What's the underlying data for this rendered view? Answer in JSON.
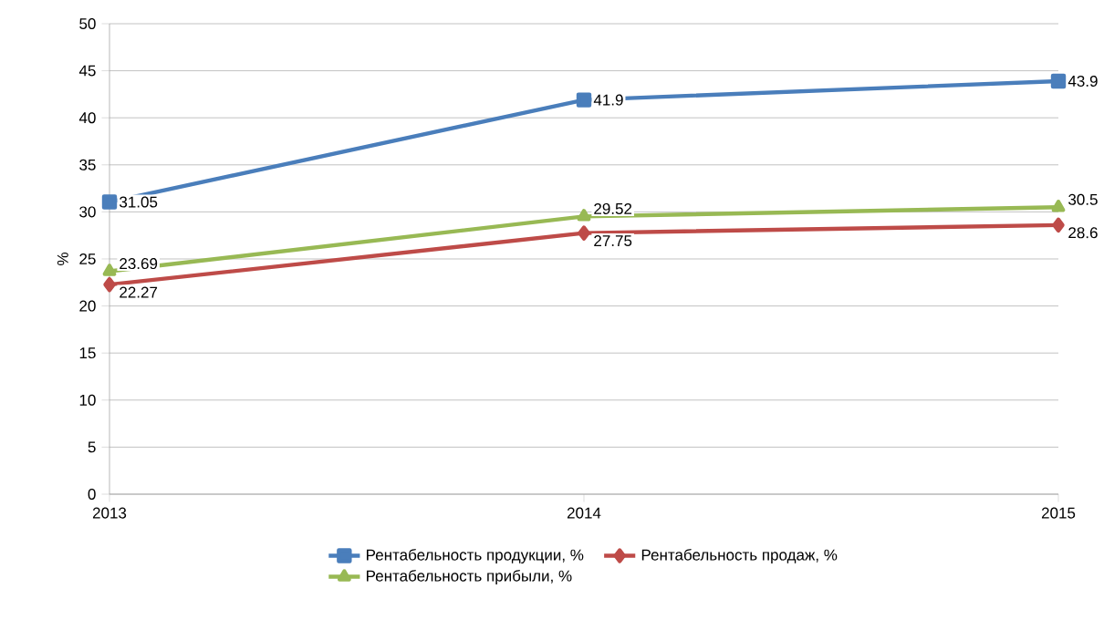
{
  "chart_data": {
    "type": "line",
    "ylabel": "%",
    "x": [
      2013,
      2014,
      2015
    ],
    "series": [
      {
        "name": "Рентабельность продукции, %",
        "color": "#4a7ebb",
        "marker": "square",
        "values": [
          31.05,
          41.9,
          43.9
        ]
      },
      {
        "name": "Рентабельность продаж, %",
        "color": "#be4b48",
        "marker": "diamond",
        "values": [
          22.27,
          27.75,
          28.6
        ]
      },
      {
        "name": "Рентабельность прибыли, %",
        "color": "#98b954",
        "marker": "triangle",
        "values": [
          23.69,
          29.52,
          30.5
        ]
      }
    ],
    "xlim": [
      2013,
      2015
    ],
    "xticks": [
      2013,
      2014,
      2015
    ],
    "ylim": [
      0,
      50
    ],
    "yticks": [
      0,
      5,
      10,
      15,
      20,
      25,
      30,
      35,
      40,
      45,
      50
    ],
    "grid": "y",
    "legend": "bottom",
    "data_labels": true,
    "line_style": "solid"
  }
}
